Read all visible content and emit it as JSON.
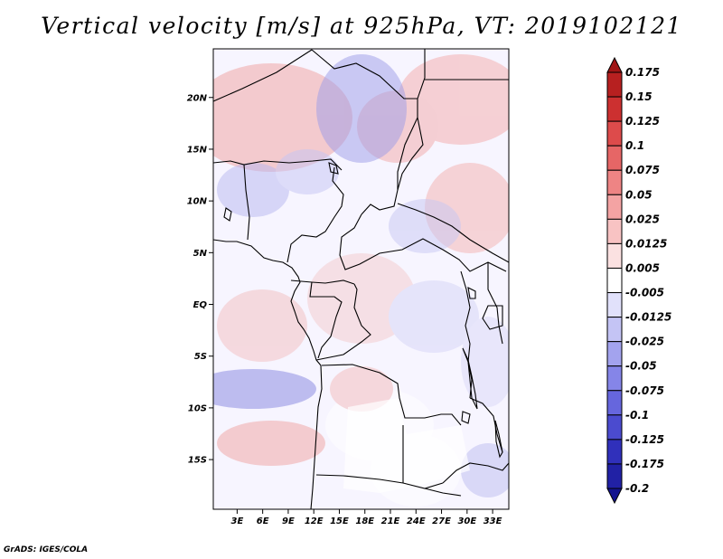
{
  "title": "Vertical velocity [m/s] at 925hPa, VT: 2019102121",
  "footer": "GrADS: IGES/COLA",
  "map": {
    "lat_labels": [
      "20N",
      "15N",
      "10N",
      "5N",
      "EQ",
      "5S",
      "10S",
      "15S"
    ],
    "lat_values": [
      20,
      15,
      10,
      5,
      0,
      -5,
      -10,
      -15
    ],
    "lon_labels": [
      "3E",
      "6E",
      "9E",
      "12E",
      "15E",
      "18E",
      "21E",
      "24E",
      "27E",
      "30E",
      "33E"
    ],
    "lon_values": [
      3,
      6,
      9,
      12,
      15,
      18,
      21,
      24,
      27,
      30,
      33
    ],
    "lon_range": [
      0.2,
      34.9
    ],
    "lat_range": [
      -19.8,
      24.7
    ]
  },
  "colorbar": {
    "labels": [
      "0.175",
      "0.15",
      "0.125",
      "0.1",
      "0.075",
      "0.05",
      "0.025",
      "0.0125",
      "0.005",
      "-0.005",
      "-0.0125",
      "-0.025",
      "-0.05",
      "-0.075",
      "-0.1",
      "-0.125",
      "-0.175",
      "-0.2"
    ],
    "colors": [
      "#a11515",
      "#b72020",
      "#cc3030",
      "#dd4b4b",
      "#e66666",
      "#ee8484",
      "#f4a3a3",
      "#f8c3c3",
      "#fbe1e1",
      "#ffffff",
      "#e1e1fb",
      "#c4c4f5",
      "#a3a3ee",
      "#8585e8",
      "#6666dd",
      "#4b4bcf",
      "#3030bb",
      "#2121a5",
      "#13138f"
    ]
  }
}
